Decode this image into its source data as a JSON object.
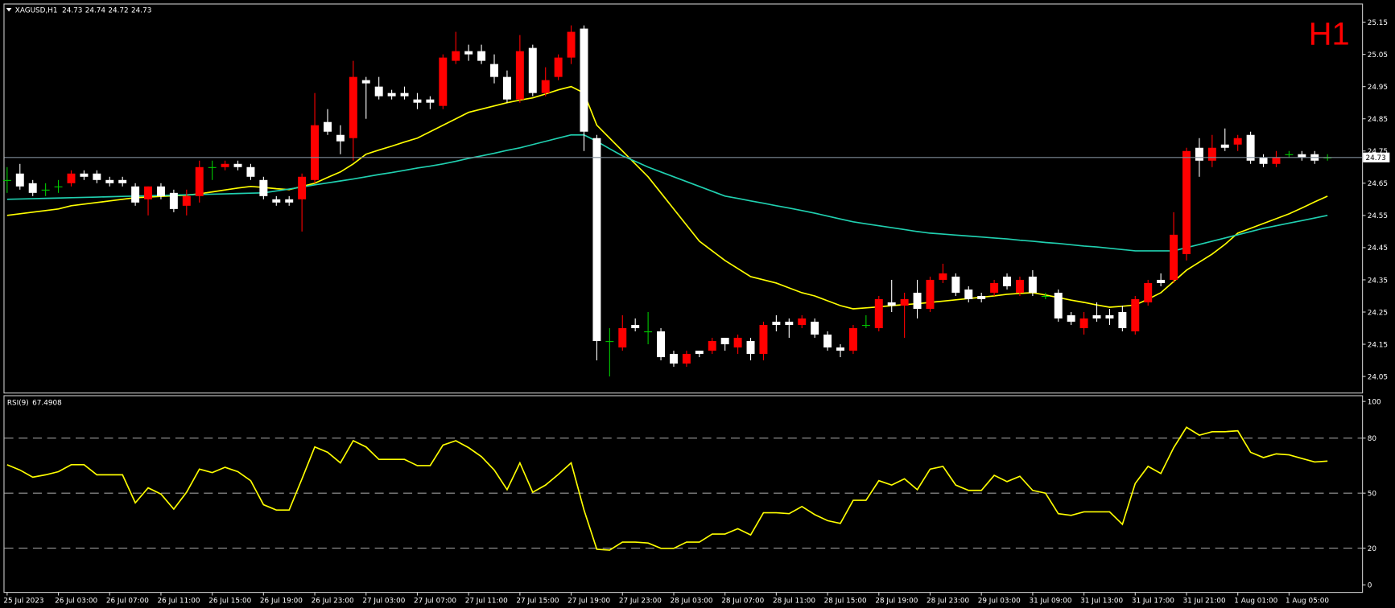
{
  "chart_data": [
    {
      "type": "candlestick",
      "symbol": "XAGUSD,H1",
      "timeframe": "H1",
      "categories": [
        "25 Jul 2023",
        null,
        null,
        null,
        "26 Jul 03:00",
        null,
        null,
        null,
        "26 Jul 07:00",
        null,
        null,
        null,
        "26 Jul 11:00",
        null,
        null,
        null,
        "26 Jul 15:00",
        null,
        null,
        null,
        "26 Jul 19:00",
        null,
        null,
        null,
        "26 Jul 23:00",
        null,
        null,
        null,
        "27 Jul 03:00",
        null,
        null,
        null,
        "27 Jul 07:00",
        null,
        null,
        null,
        "27 Jul 11:00",
        null,
        null,
        null,
        "27 Jul 15:00",
        null,
        null,
        null,
        "27 Jul 19:00",
        null,
        null,
        null,
        "27 Jul 23:00",
        null,
        null,
        null,
        "28 Jul 03:00",
        null,
        null,
        null,
        "28 Jul 07:00",
        null,
        null,
        null,
        "28 Jul 11:00",
        null,
        null,
        null,
        "28 Jul 15:00",
        null,
        null,
        null,
        "28 Jul 19:00",
        null,
        null,
        null,
        "28 Jul 23:00",
        null,
        null,
        null,
        "29 Jul 03:00",
        null,
        null,
        null,
        "31 Jul 09:00",
        null,
        null,
        null,
        "31 Jul 13:00",
        null,
        null,
        null,
        "31 Jul 17:00",
        null,
        null,
        null,
        "31 Jul 21:00",
        null,
        null,
        null,
        "1 Aug 01:00",
        null,
        null,
        null,
        "1 Aug 05:00",
        null,
        null,
        null
      ],
      "open": [
        24.66,
        24.68,
        24.65,
        24.63,
        24.64,
        24.65,
        24.68,
        24.68,
        24.66,
        24.66,
        24.64,
        24.6,
        24.64,
        24.62,
        24.58,
        24.61,
        24.7,
        24.7,
        24.71,
        24.7,
        24.66,
        24.6,
        24.6,
        24.6,
        24.66,
        24.84,
        24.8,
        24.79,
        24.97,
        24.95,
        24.93,
        24.93,
        24.91,
        24.91,
        24.89,
        25.03,
        25.06,
        25.06,
        25.02,
        24.98,
        24.91,
        25.07,
        24.93,
        24.98,
        25.04,
        25.13,
        24.79,
        24.16,
        24.14,
        24.21,
        24.19,
        24.19,
        24.12,
        24.09,
        24.13,
        24.13,
        24.17,
        24.14,
        24.16,
        24.12,
        24.22,
        24.22,
        24.21,
        24.22,
        24.18,
        24.14,
        24.13,
        24.21,
        24.2,
        24.28,
        24.27,
        24.31,
        24.26,
        24.35,
        24.36,
        24.32,
        24.3,
        24.31,
        24.36,
        24.31,
        24.36,
        24.3,
        24.31,
        24.24,
        24.2,
        24.24,
        24.24,
        24.25,
        24.19,
        24.28,
        24.35,
        24.35,
        24.43,
        24.76,
        24.72,
        24.77,
        24.77,
        24.8,
        24.73,
        24.71,
        24.74,
        24.74,
        24.74,
        24.73
      ],
      "high": [
        24.7,
        24.71,
        24.66,
        24.65,
        24.66,
        24.69,
        24.69,
        24.69,
        24.67,
        24.67,
        24.65,
        24.64,
        24.65,
        24.63,
        24.63,
        24.72,
        24.72,
        24.72,
        24.72,
        24.71,
        24.67,
        24.61,
        24.61,
        24.68,
        24.93,
        24.88,
        24.83,
        25.03,
        24.98,
        24.98,
        24.94,
        24.95,
        24.93,
        24.92,
        25.05,
        25.12,
        25.08,
        25.08,
        25.05,
        25.0,
        25.11,
        25.08,
        25.01,
        25.05,
        25.14,
        25.14,
        24.8,
        24.2,
        24.24,
        24.23,
        24.25,
        24.2,
        24.13,
        24.13,
        24.13,
        24.17,
        24.17,
        24.18,
        24.17,
        24.22,
        24.24,
        24.23,
        24.24,
        24.23,
        24.19,
        24.15,
        24.21,
        24.24,
        24.3,
        24.35,
        24.31,
        24.35,
        24.36,
        24.4,
        24.37,
        24.33,
        24.31,
        24.35,
        24.37,
        24.36,
        24.38,
        24.31,
        24.32,
        24.25,
        24.25,
        24.28,
        24.26,
        24.27,
        24.3,
        24.35,
        24.37,
        24.56,
        24.76,
        24.79,
        24.8,
        24.82,
        24.8,
        24.81,
        24.74,
        24.75,
        24.75,
        24.75,
        24.75,
        24.74
      ],
      "low": [
        24.62,
        24.63,
        24.61,
        24.61,
        24.62,
        24.64,
        24.66,
        24.65,
        24.64,
        24.64,
        24.58,
        24.55,
        24.6,
        24.56,
        24.55,
        24.59,
        24.66,
        24.69,
        24.69,
        24.66,
        24.6,
        24.58,
        24.58,
        24.5,
        24.65,
        24.8,
        24.74,
        24.72,
        24.85,
        24.91,
        24.91,
        24.91,
        24.88,
        24.88,
        24.88,
        25.02,
        25.03,
        25.02,
        24.96,
        24.9,
        24.9,
        24.92,
        24.92,
        24.97,
        25.02,
        24.75,
        24.1,
        24.05,
        24.13,
        24.19,
        24.15,
        24.1,
        24.08,
        24.08,
        24.11,
        24.12,
        24.13,
        24.12,
        24.1,
        24.1,
        24.19,
        24.17,
        24.2,
        24.17,
        24.13,
        24.11,
        24.12,
        24.2,
        24.19,
        24.25,
        24.17,
        24.23,
        24.25,
        24.34,
        24.3,
        24.28,
        24.28,
        24.3,
        24.32,
        24.3,
        24.3,
        24.29,
        24.22,
        24.21,
        24.18,
        24.22,
        24.21,
        24.19,
        24.18,
        24.27,
        24.33,
        24.34,
        24.41,
        24.67,
        24.7,
        24.75,
        24.75,
        24.71,
        24.7,
        24.7,
        24.73,
        24.72,
        24.71,
        24.72
      ],
      "close": [
        24.66,
        24.64,
        24.62,
        24.63,
        24.64,
        24.68,
        24.67,
        24.66,
        24.65,
        24.65,
        24.59,
        24.64,
        24.61,
        24.57,
        24.61,
        24.7,
        24.7,
        24.71,
        24.7,
        24.67,
        24.61,
        24.59,
        24.59,
        24.67,
        24.83,
        24.81,
        24.78,
        24.98,
        24.96,
        24.92,
        24.92,
        24.92,
        24.9,
        24.9,
        25.04,
        25.06,
        25.05,
        25.03,
        24.98,
        24.91,
        25.06,
        24.93,
        24.97,
        25.04,
        25.12,
        24.81,
        24.16,
        24.16,
        24.2,
        24.2,
        24.19,
        24.11,
        24.09,
        24.12,
        24.12,
        24.16,
        24.15,
        24.17,
        24.12,
        24.21,
        24.21,
        24.21,
        24.23,
        24.18,
        24.14,
        24.13,
        24.2,
        24.21,
        24.29,
        24.27,
        24.29,
        24.26,
        24.35,
        24.37,
        24.31,
        24.29,
        24.29,
        24.34,
        24.33,
        24.35,
        24.31,
        24.3,
        24.23,
        24.22,
        24.23,
        24.23,
        24.23,
        24.2,
        24.29,
        24.34,
        24.34,
        24.49,
        24.75,
        24.72,
        24.76,
        24.76,
        24.79,
        24.72,
        24.71,
        24.73,
        24.74,
        24.73,
        24.72,
        24.73
      ],
      "up_color": "#ff0000",
      "down_color": "#ffffff",
      "doji_color": "#00c800",
      "lines": [
        {
          "color": "#ffff00",
          "values": [
            24.55,
            24.555,
            24.56,
            24.565,
            24.57,
            24.58,
            24.585,
            24.59,
            24.595,
            24.6,
            24.605,
            24.607,
            24.609,
            24.611,
            24.613,
            24.617,
            24.623,
            24.629,
            24.635,
            24.64,
            24.637,
            24.633,
            24.63,
            24.64,
            24.65,
            24.668,
            24.685,
            24.71,
            24.74,
            24.753,
            24.765,
            24.778,
            24.79,
            24.81,
            24.83,
            24.85,
            24.87,
            24.88,
            24.89,
            24.9,
            24.908,
            24.915,
            24.927,
            24.94,
            24.95,
            24.93,
            24.83,
            24.79,
            24.75,
            24.71,
            24.67,
            24.62,
            24.57,
            24.52,
            24.47,
            24.44,
            24.41,
            24.385,
            24.36,
            24.35,
            24.34,
            24.325,
            24.31,
            24.3,
            24.285,
            24.27,
            24.26,
            24.263,
            24.266,
            24.27,
            24.273,
            24.276,
            24.28,
            24.284,
            24.288,
            24.292,
            24.296,
            24.3,
            24.305,
            24.308,
            24.31,
            24.303,
            24.295,
            24.287,
            24.28,
            24.272,
            24.265,
            24.268,
            24.272,
            24.29,
            24.31,
            24.345,
            24.38,
            24.405,
            24.43,
            24.46,
            24.495,
            24.51,
            24.525,
            24.54,
            24.555,
            24.573,
            24.592,
            24.61
          ]
        },
        {
          "color": "#20d0b0",
          "values": [
            24.6,
            24.601,
            24.602,
            24.603,
            24.604,
            24.605,
            24.606,
            24.607,
            24.608,
            24.609,
            24.61,
            24.611,
            24.612,
            24.613,
            24.614,
            24.615,
            24.616,
            24.617,
            24.618,
            24.619,
            24.62,
            24.626,
            24.632,
            24.638,
            24.645,
            24.651,
            24.657,
            24.663,
            24.67,
            24.677,
            24.683,
            24.69,
            24.697,
            24.703,
            24.71,
            24.718,
            24.727,
            24.735,
            24.743,
            24.752,
            24.76,
            24.77,
            24.78,
            24.79,
            24.8,
            24.8,
            24.78,
            24.757,
            24.735,
            24.718,
            24.7,
            24.685,
            24.67,
            24.655,
            24.64,
            24.625,
            24.61,
            24.603,
            24.595,
            24.588,
            24.58,
            24.573,
            24.565,
            24.557,
            24.548,
            24.539,
            24.53,
            24.524,
            24.518,
            24.512,
            24.506,
            24.5,
            24.495,
            24.492,
            24.489,
            24.486,
            24.483,
            24.48,
            24.477,
            24.473,
            24.47,
            24.466,
            24.463,
            24.459,
            24.455,
            24.452,
            24.448,
            24.444,
            24.44,
            24.44,
            24.44,
            24.44,
            24.45,
            24.46,
            24.47,
            24.48,
            24.49,
            24.5,
            24.51,
            24.518,
            24.526,
            24.534,
            24.542,
            24.55
          ]
        }
      ],
      "ylim": [
        24.0,
        25.205
      ],
      "yticks": [
        24.05,
        24.15,
        24.25,
        24.35,
        24.45,
        24.55,
        24.65,
        24.75,
        24.85,
        24.95,
        25.05,
        25.15
      ]
    },
    {
      "type": "line",
      "series": [
        {
          "name": "RSI(9)",
          "color": "#ffff00",
          "values": [
            65.5,
            62.6,
            58.7,
            60,
            61.7,
            65.5,
            65.5,
            60,
            60,
            60,
            44.7,
            52.9,
            49.5,
            41.3,
            50.5,
            63.1,
            61.2,
            64.1,
            61.7,
            56.8,
            43.7,
            40.8,
            40.8,
            57.8,
            75.2,
            72.3,
            66.5,
            78.6,
            75.2,
            68.4,
            68.4,
            68.4,
            65,
            65,
            76.2,
            78.6,
            74.8,
            69.9,
            62.6,
            51.9,
            66.5,
            50.5,
            54.4,
            60.2,
            66.5,
            40.8,
            19.4,
            18.9,
            23.3,
            23.3,
            22.8,
            19.9,
            19.9,
            23.3,
            23.3,
            27.7,
            27.7,
            30.6,
            27.2,
            39.3,
            39.3,
            38.8,
            42.7,
            38.3,
            35,
            33.5,
            46.1,
            46.1,
            56.8,
            54.4,
            57.8,
            51.9,
            63.1,
            64.6,
            54.4,
            51.5,
            51.5,
            59.7,
            56.3,
            59.2,
            51.5,
            50,
            38.8,
            37.9,
            39.8,
            39.8,
            39.8,
            33,
            55.3,
            64.6,
            60.7,
            74.8,
            85.9,
            81.6,
            83.5,
            83.5,
            84,
            72.3,
            69.4,
            71.4,
            70.9,
            68.9,
            67,
            67.4908
          ]
        }
      ],
      "ylim": [
        -3.9,
        102.9
      ],
      "yticks": [
        0,
        20,
        50,
        80,
        100
      ],
      "grid": "dashed"
    }
  ]
}
